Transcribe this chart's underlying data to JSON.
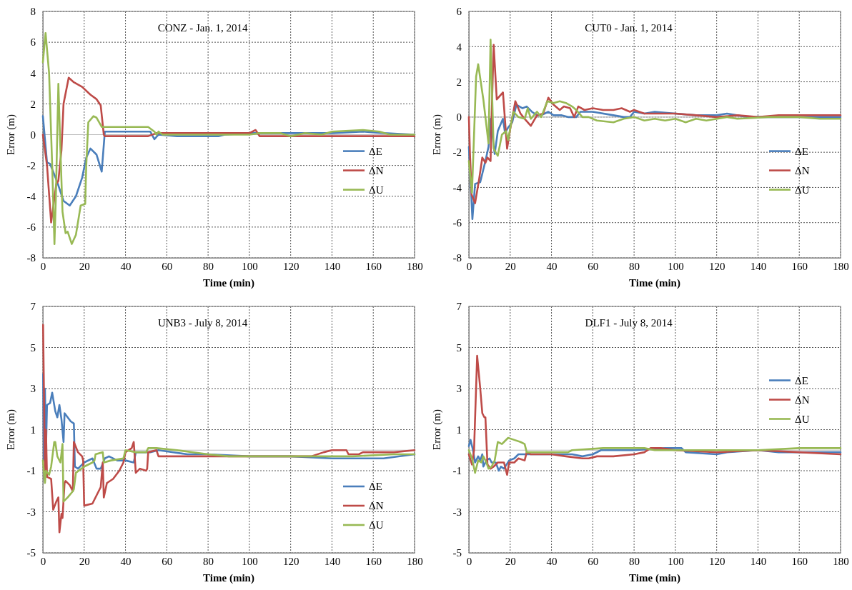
{
  "chart_data": [
    {
      "type": "line",
      "title": "CONZ - Jan. 1, 2014",
      "xlabel": "Time (min)",
      "ylabel": "Error (m)",
      "xlim": [
        0,
        180
      ],
      "xticks": [
        0,
        20,
        40,
        60,
        80,
        100,
        120,
        140,
        160,
        180
      ],
      "ylim": [
        -8,
        8
      ],
      "yticks": [
        -8,
        -6,
        -4,
        -2,
        0,
        2,
        4,
        6,
        8
      ],
      "grid": true,
      "legend": "right",
      "series": [
        {
          "name": "ΔE",
          "color": "#4a7ebb",
          "x": [
            0,
            2,
            3.5,
            7,
            10,
            13,
            16,
            19,
            21,
            23,
            26,
            28.5,
            30,
            52,
            54,
            56,
            65,
            85,
            88,
            100,
            120,
            140,
            155,
            165,
            180
          ],
          "values": [
            1.2,
            -1.8,
            -1.9,
            -3.1,
            -4.3,
            -4.6,
            -4,
            -2.8,
            -1.5,
            -0.9,
            -1.3,
            -2.4,
            0.2,
            0.2,
            -0.3,
            0,
            -0.1,
            -0.1,
            0,
            0.1,
            0.1,
            0.1,
            0.2,
            0.1,
            0
          ]
        },
        {
          "name": "ΔN",
          "color": "#be4b48",
          "x": [
            0,
            2,
            4,
            6.5,
            7.5,
            9,
            10,
            12.5,
            15,
            19,
            23,
            26,
            28,
            29.5,
            30,
            51,
            55,
            100,
            103,
            105,
            180
          ],
          "values": [
            0,
            -2,
            -5.7,
            -3.2,
            -3,
            -1,
            2,
            3.7,
            3.4,
            3.1,
            2.6,
            2.3,
            1.9,
            0,
            -0.1,
            -0.1,
            0.1,
            0.1,
            0.3,
            -0.1,
            -0.1
          ]
        },
        {
          "name": "ΔU",
          "color": "#98b954",
          "x": [
            0,
            1.3,
            3,
            4.5,
            5.6,
            6.3,
            7.5,
            8.5,
            9.5,
            11,
            12,
            14,
            16,
            18.3,
            20.5,
            21,
            22,
            24.5,
            26,
            28.5,
            51,
            54,
            55,
            56,
            58,
            100,
            105,
            115,
            120,
            127,
            135,
            140,
            155,
            163,
            168,
            180
          ],
          "values": [
            4.7,
            6.6,
            4,
            -2,
            -7.1,
            -4,
            3.3,
            -1,
            -5,
            -6.4,
            -6.3,
            -7.1,
            -6.5,
            -4.6,
            -4.5,
            -2,
            0.8,
            1.2,
            1.1,
            0.5,
            0.5,
            0.2,
            0,
            0.2,
            0,
            0,
            0.1,
            0.1,
            -0.1,
            0.1,
            0,
            0.2,
            0.3,
            0.2,
            0,
            0
          ]
        }
      ]
    },
    {
      "type": "line",
      "title": "CUT0 - Jan. 1, 2014",
      "xlabel": "Time (min)",
      "ylabel": "Error (m)",
      "xlim": [
        0,
        180
      ],
      "xticks": [
        0,
        20,
        40,
        60,
        80,
        100,
        120,
        140,
        160,
        180
      ],
      "ylim": [
        -8,
        6
      ],
      "yticks": [
        -8,
        -6,
        -4,
        -2,
        0,
        2,
        4,
        6
      ],
      "grid": true,
      "legend": "right",
      "series": [
        {
          "name": "ΔE",
          "color": "#4a7ebb",
          "x": [
            0,
            1.7,
            3,
            5.5,
            8,
            9.5,
            10.5,
            12.5,
            14,
            16.5,
            17.5,
            19,
            21,
            23,
            26,
            28,
            30.5,
            33,
            35,
            38.5,
            41,
            45,
            48,
            52,
            54,
            60,
            70,
            75,
            78,
            80,
            85,
            90,
            100,
            110,
            120,
            125,
            135,
            150,
            165,
            180
          ],
          "values": [
            -1.7,
            -5.8,
            -3.8,
            -3.7,
            -2.5,
            -1.7,
            -0.1,
            -2.1,
            -0.8,
            -0.1,
            -0.9,
            -0.6,
            -0.3,
            0.7,
            0.5,
            0.6,
            0.3,
            0.1,
            0.1,
            0.3,
            0.1,
            0.1,
            0,
            0,
            0.3,
            0.3,
            0.1,
            0,
            0,
            0.3,
            0.2,
            0.3,
            0.2,
            0.1,
            0.1,
            0.2,
            0,
            0,
            0,
            0
          ]
        },
        {
          "name": "ΔN",
          "color": "#be4b48",
          "x": [
            0,
            0.5,
            1.3,
            3,
            5,
            6.5,
            8,
            9,
            10.5,
            11,
            12,
            13.5,
            16.5,
            18.5,
            20,
            22.5,
            25,
            27,
            30,
            33,
            36,
            38.5,
            41,
            44,
            46,
            49,
            51,
            53,
            56,
            60,
            65,
            70,
            74,
            78,
            80,
            85,
            95,
            100,
            110,
            120,
            130,
            140,
            150,
            165,
            180
          ],
          "values": [
            0,
            -2,
            -4.4,
            -4.9,
            -3.5,
            -2.3,
            -2.6,
            -2.3,
            -2.5,
            0,
            4.1,
            1,
            1.4,
            -1.8,
            -0.7,
            0.9,
            0.2,
            -0.1,
            -0.5,
            0.1,
            0.2,
            1.1,
            0.7,
            0.4,
            0.6,
            0.5,
            0,
            0.6,
            0.4,
            0.5,
            0.4,
            0.4,
            0.5,
            0.3,
            0.4,
            0.2,
            0.2,
            0.2,
            0.1,
            0,
            0.1,
            0,
            0.1,
            0.1,
            0.1
          ]
        },
        {
          "name": "ΔU",
          "color": "#98b954",
          "x": [
            0,
            1.5,
            3.5,
            4.5,
            7,
            9.5,
            10.5,
            12,
            14,
            16,
            18,
            19,
            21.5,
            24,
            27,
            28.5,
            30,
            33,
            35,
            38,
            41,
            44,
            47,
            50,
            52,
            55,
            58,
            62,
            70,
            75,
            80,
            85,
            90,
            95,
            100,
            105,
            110,
            115,
            125,
            130,
            145,
            160,
            170,
            180
          ],
          "values": [
            -2.5,
            -4.3,
            2.3,
            3,
            1,
            -1.5,
            4.4,
            -1.8,
            -2.2,
            -1,
            -0.8,
            -1.3,
            0.3,
            0,
            -0.1,
            0.5,
            -0.1,
            0.3,
            0,
            0.9,
            0.8,
            0.9,
            0.8,
            0.6,
            0.4,
            0,
            0,
            -0.2,
            -0.3,
            -0.1,
            0,
            -0.2,
            -0.1,
            -0.2,
            -0.1,
            -0.3,
            -0.1,
            -0.2,
            0,
            -0.1,
            0,
            0,
            -0.1,
            -0.1
          ]
        }
      ]
    },
    {
      "type": "line",
      "title": "UNB3 - July 8, 2014",
      "xlabel": "Time (min)",
      "ylabel": "Error (m)",
      "xlim": [
        0,
        180
      ],
      "xticks": [
        0,
        20,
        40,
        60,
        80,
        100,
        120,
        140,
        160,
        180
      ],
      "ylim": [
        -5,
        7
      ],
      "yticks": [
        -5,
        -3,
        -1,
        1,
        3,
        5,
        7
      ],
      "grid": true,
      "legend": "bottom right",
      "series": [
        {
          "name": "ΔE",
          "color": "#4a7ebb",
          "x": [
            0.1,
            0.5,
            1,
            1.5,
            2,
            3.5,
            4.5,
            6,
            7,
            8,
            9,
            10,
            10.5,
            13.5,
            15,
            15.5,
            17,
            20,
            24,
            26,
            28,
            30,
            32,
            36,
            40,
            44,
            45,
            52,
            56,
            70,
            80,
            100,
            120,
            140,
            165,
            180
          ],
          "values": [
            3.7,
            -0.5,
            3,
            0,
            2.2,
            2.3,
            2.8,
            1.9,
            1.6,
            2.2,
            1.5,
            0.4,
            1.8,
            1.4,
            1.3,
            -0.8,
            -0.9,
            -0.6,
            -0.4,
            -0.9,
            -0.9,
            -0.4,
            -0.3,
            -0.5,
            -0.5,
            -0.6,
            -0.1,
            -0.1,
            0,
            -0.2,
            -0.2,
            -0.3,
            -0.3,
            -0.4,
            -0.4,
            -0.2
          ]
        },
        {
          "name": "ΔN",
          "color": "#be4b48",
          "x": [
            0.1,
            1,
            1.5,
            2,
            4,
            5,
            6.5,
            7.5,
            8,
            9,
            9.5,
            10.5,
            11,
            13,
            14.5,
            15,
            17,
            19,
            19.5,
            20,
            24,
            26,
            28,
            29,
            29.5,
            31,
            34,
            37,
            39,
            40,
            43,
            44,
            45,
            47,
            50,
            50.5,
            51,
            55,
            56,
            100,
            130,
            136,
            140,
            147,
            148,
            153,
            155,
            170,
            180
          ],
          "values": [
            6.1,
            -1,
            1,
            -1.3,
            -1.4,
            -2.9,
            -2.5,
            -2.3,
            -4,
            -3.1,
            -3.3,
            -1.6,
            -1.5,
            -1.7,
            -2,
            0.4,
            -0.1,
            -0.3,
            -0.5,
            -2.7,
            -2.6,
            -2.2,
            -1.8,
            -0.6,
            -2.3,
            -1.6,
            -1.4,
            -1,
            -0.6,
            -0.1,
            0.1,
            0.4,
            -1.1,
            -0.9,
            -1,
            -0.9,
            -0.1,
            0,
            -0.3,
            -0.3,
            -0.3,
            -0.1,
            0,
            0,
            -0.2,
            -0.2,
            -0.1,
            -0.1,
            0
          ]
        },
        {
          "name": "ΔU",
          "color": "#98b954",
          "x": [
            0,
            1,
            1.5,
            3,
            4,
            5.5,
            6,
            7,
            8.5,
            9.5,
            10,
            12,
            14.5,
            15,
            16,
            20,
            24,
            25,
            25.5,
            29,
            29.5,
            33,
            39,
            40,
            45,
            50,
            51,
            55,
            65,
            80,
            90,
            120,
            150,
            170,
            180
          ],
          "values": [
            -0.5,
            -1.6,
            -1,
            -1.2,
            -0.8,
            0.4,
            0.4,
            -0.3,
            -0.6,
            0.3,
            -2.5,
            -2.3,
            -2,
            -1.9,
            -1.1,
            -0.8,
            -0.6,
            -0.5,
            -0.2,
            -0.1,
            -0.6,
            -0.5,
            -0.4,
            0,
            -0.1,
            -0.1,
            0.1,
            0.1,
            0,
            -0.2,
            -0.3,
            -0.3,
            -0.3,
            -0.2,
            -0.2
          ]
        }
      ]
    },
    {
      "type": "line",
      "title": "DLF1 - July 8, 2014",
      "xlabel": "Time (min)",
      "ylabel": "Error (m)",
      "xlim": [
        0,
        180
      ],
      "xticks": [
        0,
        20,
        40,
        60,
        80,
        100,
        120,
        140,
        160,
        180
      ],
      "ylim": [
        -5,
        7
      ],
      "yticks": [
        -5,
        -3,
        -1,
        1,
        3,
        5,
        7
      ],
      "grid": true,
      "legend": "top right",
      "series": [
        {
          "name": "ΔE",
          "color": "#4a7ebb",
          "x": [
            0,
            0.8,
            2,
            3,
            4.5,
            5.5,
            6.5,
            7,
            8.5,
            10,
            11,
            13,
            14.5,
            15.5,
            17,
            19.5,
            22,
            24,
            30,
            40,
            50,
            55,
            60,
            64,
            80,
            95,
            103,
            105,
            120,
            125,
            140,
            150,
            160,
            180
          ],
          "values": [
            0.2,
            0.5,
            0,
            -0.6,
            -0.3,
            -0.5,
            -0.2,
            -0.8,
            -0.5,
            -0.4,
            -0.6,
            -0.6,
            -1,
            -0.8,
            -0.9,
            -0.5,
            -0.4,
            -0.2,
            -0.2,
            -0.2,
            -0.2,
            -0.3,
            -0.2,
            0,
            0,
            0.1,
            0.1,
            -0.1,
            -0.2,
            -0.1,
            0,
            -0.1,
            -0.1,
            -0.1
          ]
        },
        {
          "name": "ΔN",
          "color": "#be4b48",
          "x": [
            0,
            1.5,
            2.5,
            4,
            5.5,
            6.5,
            7.5,
            8,
            9,
            10.5,
            12,
            14,
            16,
            17,
            18.5,
            19.5,
            22,
            24,
            27,
            28,
            30,
            40,
            47,
            55,
            58,
            62,
            70,
            80,
            85,
            88,
            93,
            100,
            120,
            140,
            160,
            180
          ],
          "values": [
            -0.2,
            -0.7,
            0,
            4.6,
            3,
            1.8,
            1.6,
            1.6,
            -0.7,
            -0.9,
            -0.8,
            -0.6,
            -0.6,
            -0.6,
            -1.2,
            -0.6,
            -0.6,
            -0.4,
            -0.5,
            -0.1,
            -0.2,
            -0.2,
            -0.3,
            -0.4,
            -0.4,
            -0.3,
            -0.3,
            -0.2,
            -0.1,
            0.1,
            0.1,
            0,
            -0.1,
            0,
            -0.1,
            -0.2
          ]
        },
        {
          "name": "ΔU",
          "color": "#98b954",
          "x": [
            0,
            1.5,
            3,
            4.5,
            6,
            7,
            8.5,
            9.5,
            11,
            12.5,
            14,
            16,
            17,
            19,
            22,
            25,
            27,
            28,
            40,
            48,
            50,
            65,
            85,
            90,
            100,
            120,
            140,
            160,
            180
          ],
          "values": [
            0,
            -0.4,
            -1.1,
            -0.5,
            -0.6,
            -0.3,
            -0.6,
            -0.9,
            -0.8,
            -0.5,
            0.4,
            0.3,
            0.4,
            0.6,
            0.5,
            0.4,
            0.3,
            -0.1,
            -0.1,
            -0.1,
            0,
            0.1,
            0.1,
            0,
            0,
            0,
            0,
            0.1,
            0.1
          ]
        }
      ]
    }
  ]
}
